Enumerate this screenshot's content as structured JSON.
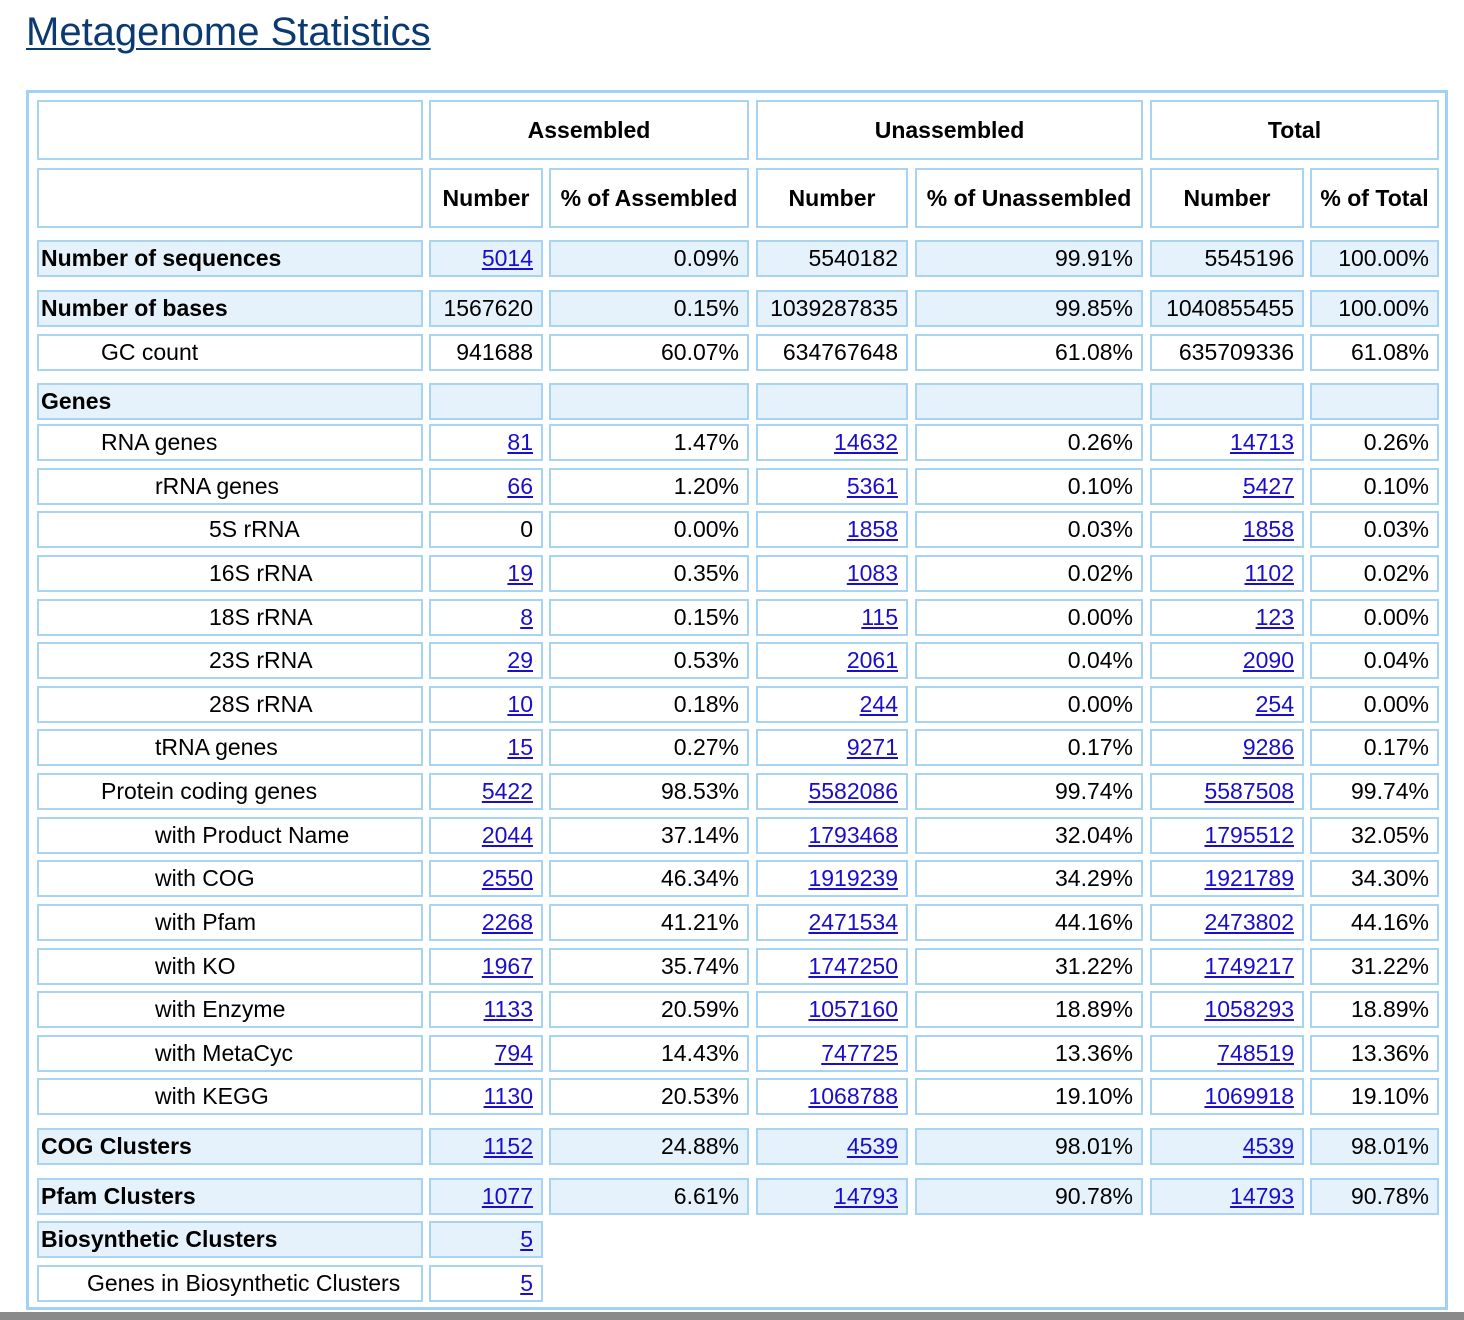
{
  "page": {
    "title": "Metagenome Statistics"
  },
  "table": {
    "group_headers": [
      "Assembled",
      "Unassembled",
      "Total"
    ],
    "sub_headers": [
      "Number",
      "% of Assembled",
      "Number",
      "% of Unassembled",
      "Number",
      "% of Total"
    ],
    "rows": [
      {
        "label": "Number of sequences",
        "level": 0,
        "bold": true,
        "shaded": true,
        "gap_before": false,
        "cells": [
          {
            "v": "5014",
            "link": true
          },
          {
            "v": "0.09%"
          },
          {
            "v": "5540182"
          },
          {
            "v": "99.91%"
          },
          {
            "v": "5545196"
          },
          {
            "v": "100.00%"
          }
        ]
      },
      {
        "label": "Number of bases",
        "level": 0,
        "bold": true,
        "shaded": true,
        "gap_before": true,
        "cells": [
          {
            "v": "1567620"
          },
          {
            "v": "0.15%"
          },
          {
            "v": "1039287835"
          },
          {
            "v": "99.85%"
          },
          {
            "v": "1040855455"
          },
          {
            "v": "100.00%"
          }
        ]
      },
      {
        "label": "GC count",
        "level": 1,
        "bold": false,
        "shaded": false,
        "gap_before": false,
        "cells": [
          {
            "v": "941688"
          },
          {
            "v": "60.07%"
          },
          {
            "v": "634767648"
          },
          {
            "v": "61.08%"
          },
          {
            "v": "635709336"
          },
          {
            "v": "61.08%"
          }
        ]
      },
      {
        "label": "Genes",
        "level": 0,
        "bold": true,
        "shaded": true,
        "gap_before": true,
        "cells": [
          {
            "v": ""
          },
          {
            "v": ""
          },
          {
            "v": ""
          },
          {
            "v": ""
          },
          {
            "v": ""
          },
          {
            "v": ""
          }
        ]
      },
      {
        "label": "RNA genes",
        "level": 1,
        "bold": false,
        "shaded": false,
        "gap_before": false,
        "cells": [
          {
            "v": "81",
            "link": true
          },
          {
            "v": "1.47%"
          },
          {
            "v": "14632",
            "link": true
          },
          {
            "v": "0.26%"
          },
          {
            "v": "14713",
            "link": true
          },
          {
            "v": "0.26%"
          }
        ]
      },
      {
        "label": "rRNA genes",
        "level": 2,
        "bold": false,
        "shaded": false,
        "gap_before": false,
        "cells": [
          {
            "v": "66",
            "link": true
          },
          {
            "v": "1.20%"
          },
          {
            "v": "5361",
            "link": true
          },
          {
            "v": "0.10%"
          },
          {
            "v": "5427",
            "link": true
          },
          {
            "v": "0.10%"
          }
        ]
      },
      {
        "label": "5S rRNA",
        "level": 3,
        "bold": false,
        "shaded": false,
        "gap_before": false,
        "cells": [
          {
            "v": "0"
          },
          {
            "v": "0.00%"
          },
          {
            "v": "1858",
            "link": true
          },
          {
            "v": "0.03%"
          },
          {
            "v": "1858",
            "link": true
          },
          {
            "v": "0.03%"
          }
        ]
      },
      {
        "label": "16S rRNA",
        "level": 3,
        "bold": false,
        "shaded": false,
        "gap_before": false,
        "cells": [
          {
            "v": "19",
            "link": true
          },
          {
            "v": "0.35%"
          },
          {
            "v": "1083",
            "link": true
          },
          {
            "v": "0.02%"
          },
          {
            "v": "1102",
            "link": true
          },
          {
            "v": "0.02%"
          }
        ]
      },
      {
        "label": "18S rRNA",
        "level": 3,
        "bold": false,
        "shaded": false,
        "gap_before": false,
        "cells": [
          {
            "v": "8",
            "link": true
          },
          {
            "v": "0.15%"
          },
          {
            "v": "115",
            "link": true
          },
          {
            "v": "0.00%"
          },
          {
            "v": "123",
            "link": true
          },
          {
            "v": "0.00%"
          }
        ]
      },
      {
        "label": "23S rRNA",
        "level": 3,
        "bold": false,
        "shaded": false,
        "gap_before": false,
        "cells": [
          {
            "v": "29",
            "link": true
          },
          {
            "v": "0.53%"
          },
          {
            "v": "2061",
            "link": true
          },
          {
            "v": "0.04%"
          },
          {
            "v": "2090",
            "link": true
          },
          {
            "v": "0.04%"
          }
        ]
      },
      {
        "label": "28S rRNA",
        "level": 3,
        "bold": false,
        "shaded": false,
        "gap_before": false,
        "cells": [
          {
            "v": "10",
            "link": true
          },
          {
            "v": "0.18%"
          },
          {
            "v": "244",
            "link": true
          },
          {
            "v": "0.00%"
          },
          {
            "v": "254",
            "link": true
          },
          {
            "v": "0.00%"
          }
        ]
      },
      {
        "label": "tRNA genes",
        "level": 2,
        "bold": false,
        "shaded": false,
        "gap_before": false,
        "cells": [
          {
            "v": "15",
            "link": true
          },
          {
            "v": "0.27%"
          },
          {
            "v": "9271",
            "link": true
          },
          {
            "v": "0.17%"
          },
          {
            "v": "9286",
            "link": true
          },
          {
            "v": "0.17%"
          }
        ]
      },
      {
        "label": "Protein coding genes",
        "level": 1,
        "bold": false,
        "shaded": false,
        "gap_before": false,
        "cells": [
          {
            "v": "5422",
            "link": true
          },
          {
            "v": "98.53%"
          },
          {
            "v": "5582086",
            "link": true
          },
          {
            "v": "99.74%"
          },
          {
            "v": "5587508",
            "link": true
          },
          {
            "v": "99.74%"
          }
        ]
      },
      {
        "label": "with Product Name",
        "level": 2,
        "bold": false,
        "shaded": false,
        "gap_before": false,
        "cells": [
          {
            "v": "2044",
            "link": true
          },
          {
            "v": "37.14%"
          },
          {
            "v": "1793468",
            "link": true
          },
          {
            "v": "32.04%"
          },
          {
            "v": "1795512",
            "link": true
          },
          {
            "v": "32.05%"
          }
        ]
      },
      {
        "label": "with COG",
        "level": 2,
        "bold": false,
        "shaded": false,
        "gap_before": false,
        "cells": [
          {
            "v": "2550",
            "link": true
          },
          {
            "v": "46.34%"
          },
          {
            "v": "1919239",
            "link": true
          },
          {
            "v": "34.29%"
          },
          {
            "v": "1921789",
            "link": true
          },
          {
            "v": "34.30%"
          }
        ]
      },
      {
        "label": "with Pfam",
        "level": 2,
        "bold": false,
        "shaded": false,
        "gap_before": false,
        "cells": [
          {
            "v": "2268",
            "link": true
          },
          {
            "v": "41.21%"
          },
          {
            "v": "2471534",
            "link": true
          },
          {
            "v": "44.16%"
          },
          {
            "v": "2473802",
            "link": true
          },
          {
            "v": "44.16%"
          }
        ]
      },
      {
        "label": "with KO",
        "level": 2,
        "bold": false,
        "shaded": false,
        "gap_before": false,
        "cells": [
          {
            "v": "1967",
            "link": true
          },
          {
            "v": "35.74%"
          },
          {
            "v": "1747250",
            "link": true
          },
          {
            "v": "31.22%"
          },
          {
            "v": "1749217",
            "link": true
          },
          {
            "v": "31.22%"
          }
        ]
      },
      {
        "label": "with Enzyme",
        "level": 2,
        "bold": false,
        "shaded": false,
        "gap_before": false,
        "cells": [
          {
            "v": "1133",
            "link": true
          },
          {
            "v": "20.59%"
          },
          {
            "v": "1057160",
            "link": true
          },
          {
            "v": "18.89%"
          },
          {
            "v": "1058293",
            "link": true
          },
          {
            "v": "18.89%"
          }
        ]
      },
      {
        "label": "with MetaCyc",
        "level": 2,
        "bold": false,
        "shaded": false,
        "gap_before": false,
        "cells": [
          {
            "v": "794",
            "link": true
          },
          {
            "v": "14.43%"
          },
          {
            "v": "747725",
            "link": true
          },
          {
            "v": "13.36%"
          },
          {
            "v": "748519",
            "link": true
          },
          {
            "v": "13.36%"
          }
        ]
      },
      {
        "label": "with KEGG",
        "level": 2,
        "bold": false,
        "shaded": false,
        "gap_before": false,
        "cells": [
          {
            "v": "1130",
            "link": true
          },
          {
            "v": "20.53%"
          },
          {
            "v": "1068788",
            "link": true
          },
          {
            "v": "19.10%"
          },
          {
            "v": "1069918",
            "link": true
          },
          {
            "v": "19.10%"
          }
        ]
      },
      {
        "label": "COG Clusters",
        "level": 0,
        "bold": true,
        "shaded": true,
        "gap_before": true,
        "cells": [
          {
            "v": "1152",
            "link": true
          },
          {
            "v": "24.88%"
          },
          {
            "v": "4539",
            "link": true
          },
          {
            "v": "98.01%"
          },
          {
            "v": "4539",
            "link": true
          },
          {
            "v": "98.01%"
          }
        ]
      },
      {
        "label": "Pfam Clusters",
        "level": 0,
        "bold": true,
        "shaded": true,
        "gap_before": true,
        "cells": [
          {
            "v": "1077",
            "link": true
          },
          {
            "v": "6.61%"
          },
          {
            "v": "14793",
            "link": true
          },
          {
            "v": "90.78%"
          },
          {
            "v": "14793",
            "link": true
          },
          {
            "v": "90.78%"
          }
        ]
      },
      {
        "label": "Biosynthetic Clusters",
        "level": 0,
        "bold": true,
        "shaded": true,
        "gap_before": false,
        "cells": [
          {
            "v": "5",
            "link": true
          }
        ]
      },
      {
        "label": "Genes in Biosynthetic Clusters",
        "level": 0,
        "bold": false,
        "shaded": false,
        "gap_before": false,
        "extra_indent": true,
        "cells": [
          {
            "v": "5",
            "link": true
          }
        ]
      }
    ]
  }
}
